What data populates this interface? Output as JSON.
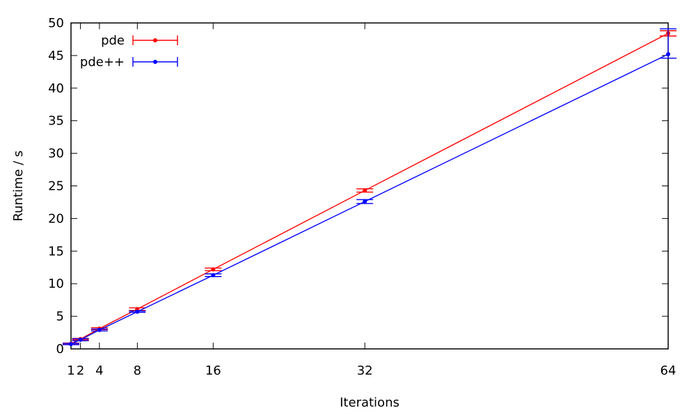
{
  "chart_data": {
    "type": "line",
    "title": "",
    "xlabel": "Iterations",
    "ylabel": "Runtime / s",
    "xlim": [
      1,
      64
    ],
    "ylim": [
      0,
      50
    ],
    "xticks": [
      1,
      2,
      4,
      8,
      16,
      32,
      64
    ],
    "yticks": [
      0,
      5,
      10,
      15,
      20,
      25,
      30,
      35,
      40,
      45,
      50
    ],
    "error_bars": true,
    "grid": false,
    "legend_position": "top-left",
    "series": [
      {
        "name": "pde",
        "color": "#ff0000",
        "x": [
          1,
          2,
          4,
          8,
          16,
          32,
          64
        ],
        "y": [
          0.8,
          1.5,
          3.1,
          6.1,
          12.2,
          24.3,
          48.4
        ],
        "err": [
          0.1,
          0.1,
          0.15,
          0.2,
          0.2,
          0.25,
          0.4
        ]
      },
      {
        "name": "pde++",
        "color": "#0000ff",
        "x": [
          1,
          2,
          4,
          8,
          16,
          32,
          64
        ],
        "y": [
          0.75,
          1.4,
          2.9,
          5.7,
          11.3,
          22.6,
          45.2
        ],
        "err": [
          0.1,
          0.15,
          0.15,
          0.1,
          0.2,
          0.3,
          0.6
        ],
        "err_upper_last": 3.9
      }
    ]
  }
}
